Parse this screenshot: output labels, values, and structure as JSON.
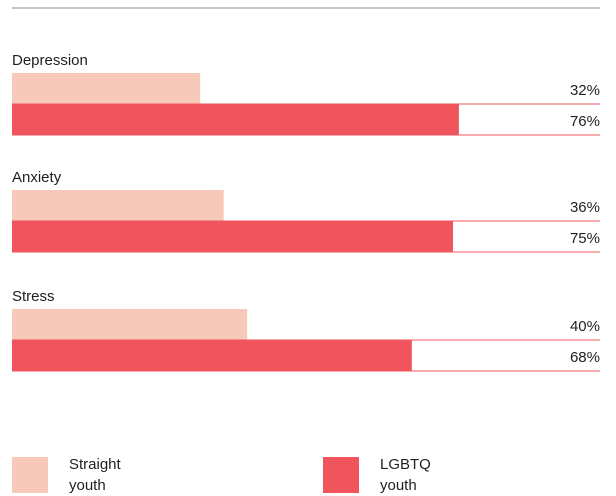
{
  "chart_data": {
    "type": "bar",
    "orientation": "horizontal",
    "categories": [
      "Depression",
      "Anxiety",
      "Stress"
    ],
    "series": [
      {
        "name": "Straight youth",
        "values": [
          32,
          36,
          40
        ],
        "color": "#f6c9b8"
      },
      {
        "name": "LGBTQ youth",
        "values": [
          76,
          75,
          68
        ],
        "color": "#f0545c"
      }
    ],
    "value_suffix": "%",
    "xlim": [
      0,
      100
    ],
    "title": "",
    "xlabel": "",
    "ylabel": "",
    "grid": false,
    "legend": {
      "position": "bottom",
      "items": [
        {
          "line1": "Straight",
          "line2": "youth",
          "color": "#f6c9b8"
        },
        {
          "line1": "LGBTQ",
          "line2": "youth",
          "color": "#f0545c"
        }
      ]
    },
    "colors": {
      "top_rule": "#8c8c8c",
      "bar_rule": "#f0545c",
      "text": "#1f1f1f"
    }
  }
}
